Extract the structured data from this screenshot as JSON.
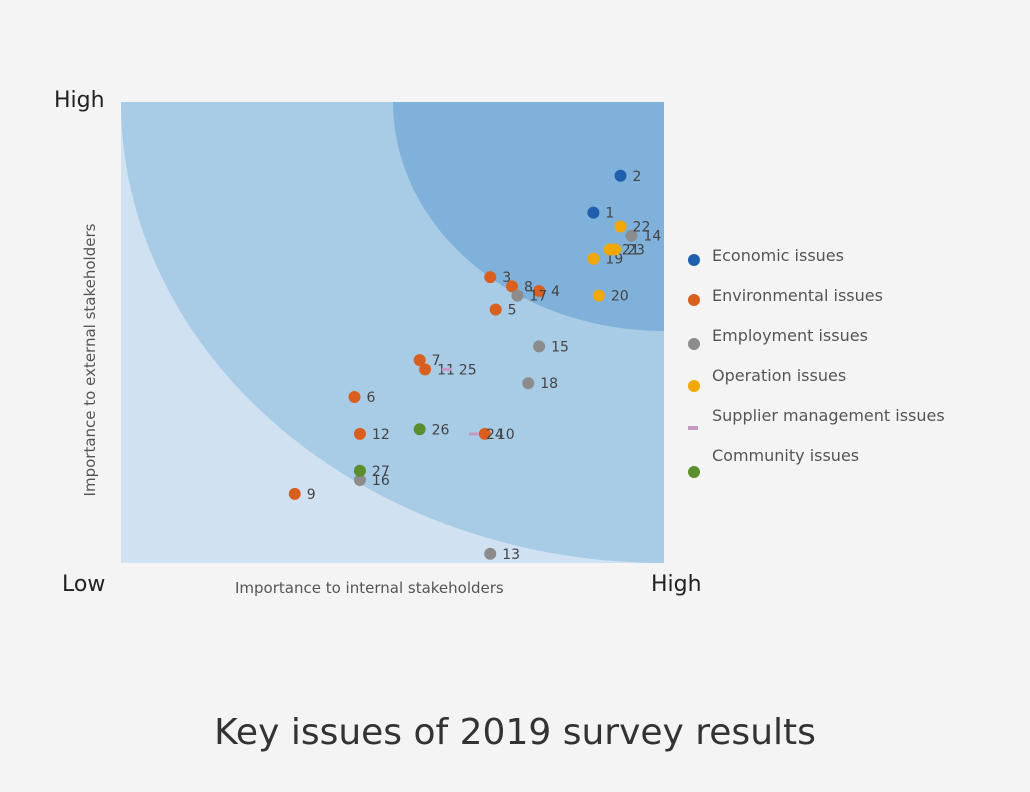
{
  "title": "Key issues of 2019 survey results",
  "chart_data": {
    "type": "scatter",
    "title": "Key issues of 2019 survey results",
    "xlabel": "Importance to internal stakeholders",
    "ylabel": "Importance to external stakeholders",
    "x_low_label": "Low",
    "x_high_label": "High",
    "y_low_label": "Low",
    "y_high_label": "High",
    "xlim": [
      0,
      100
    ],
    "ylim": [
      0,
      100
    ],
    "grid": false,
    "legend_position": "right",
    "series": [
      {
        "name": "Economic issues",
        "color": "#1f5fad",
        "marker": "circle",
        "points": [
          {
            "label": "1",
            "x": 87,
            "y": 76
          },
          {
            "label": "2",
            "x": 92,
            "y": 84
          }
        ]
      },
      {
        "name": "Environmental issues",
        "color": "#d95f1e",
        "marker": "circle",
        "points": [
          {
            "label": "3",
            "x": 68,
            "y": 62
          },
          {
            "label": "4",
            "x": 77,
            "y": 59
          },
          {
            "label": "5",
            "x": 69,
            "y": 55
          },
          {
            "label": "6",
            "x": 43,
            "y": 36
          },
          {
            "label": "7",
            "x": 55,
            "y": 44
          },
          {
            "label": "8",
            "x": 72,
            "y": 60
          },
          {
            "label": "9",
            "x": 32,
            "y": 15
          },
          {
            "label": "10",
            "x": 67,
            "y": 28
          },
          {
            "label": "11",
            "x": 56,
            "y": 42
          },
          {
            "label": "12",
            "x": 44,
            "y": 28
          }
        ]
      },
      {
        "name": "Employment issues",
        "color": "#8c8c8c",
        "marker": "circle",
        "points": [
          {
            "label": "13",
            "x": 68,
            "y": 2
          },
          {
            "label": "14",
            "x": 94,
            "y": 71
          },
          {
            "label": "15",
            "x": 77,
            "y": 47
          },
          {
            "label": "16",
            "x": 44,
            "y": 18
          },
          {
            "label": "17",
            "x": 73,
            "y": 58
          },
          {
            "label": "18",
            "x": 75,
            "y": 39
          }
        ]
      },
      {
        "name": "Operation issues",
        "color": "#f0a800",
        "marker": "circle",
        "points": [
          {
            "label": "19",
            "x": 87,
            "y": 66
          },
          {
            "label": "20",
            "x": 88,
            "y": 58
          },
          {
            "label": "21",
            "x": 90,
            "y": 68
          },
          {
            "label": "22",
            "x": 92,
            "y": 73
          },
          {
            "label": "23",
            "x": 91,
            "y": 68
          }
        ]
      },
      {
        "name": "Supplier management issues",
        "color": "#c79ac4",
        "marker": "dash",
        "points": [
          {
            "label": "24",
            "x": 65,
            "y": 28
          },
          {
            "label": "25",
            "x": 60,
            "y": 42
          }
        ]
      },
      {
        "name": "Community issues",
        "color": "#5b8f2e",
        "marker": "circle",
        "points": [
          {
            "label": "26",
            "x": 55,
            "y": 29
          },
          {
            "label": "27",
            "x": 44,
            "y": 20
          }
        ]
      }
    ],
    "bands": [
      "#d0e2f2",
      "#a8cbe6",
      "#7fb1db"
    ]
  }
}
